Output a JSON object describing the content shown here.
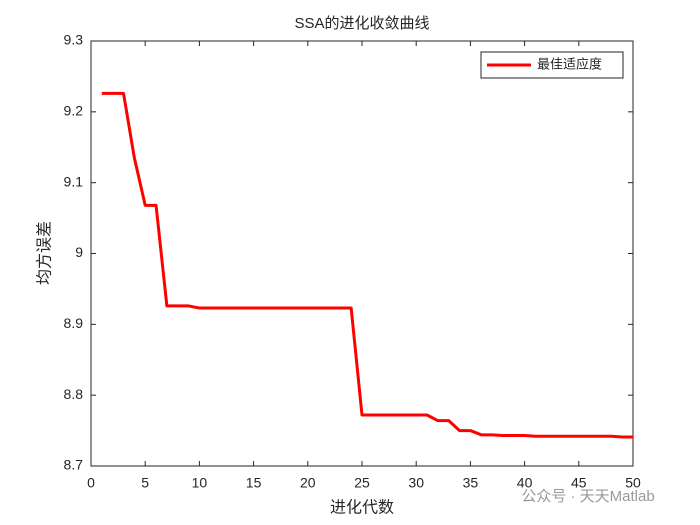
{
  "chart_data": {
    "type": "line",
    "title": "SSA的进化收敛曲线",
    "xlabel": "进化代数",
    "ylabel": "均方误差",
    "x": [
      1,
      2,
      3,
      4,
      5,
      6,
      7,
      8,
      9,
      10,
      11,
      12,
      13,
      14,
      15,
      16,
      17,
      18,
      19,
      20,
      21,
      22,
      23,
      24,
      25,
      26,
      27,
      28,
      29,
      30,
      31,
      32,
      33,
      34,
      35,
      36,
      37,
      38,
      39,
      40,
      41,
      42,
      43,
      44,
      45,
      46,
      47,
      48,
      49,
      50
    ],
    "series": [
      {
        "name": "最佳适应度",
        "color": "#ff0000",
        "values": [
          9.226,
          9.226,
          9.226,
          9.135,
          9.068,
          9.068,
          8.926,
          8.926,
          8.926,
          8.923,
          8.923,
          8.923,
          8.923,
          8.923,
          8.923,
          8.923,
          8.923,
          8.923,
          8.923,
          8.923,
          8.923,
          8.923,
          8.923,
          8.923,
          8.772,
          8.772,
          8.772,
          8.772,
          8.772,
          8.772,
          8.772,
          8.764,
          8.764,
          8.75,
          8.75,
          8.744,
          8.744,
          8.743,
          8.743,
          8.743,
          8.742,
          8.742,
          8.742,
          8.742,
          8.742,
          8.742,
          8.742,
          8.742,
          8.741,
          8.741
        ]
      }
    ],
    "xlim": [
      0,
      50
    ],
    "xticks": [
      0,
      5,
      10,
      15,
      20,
      25,
      30,
      35,
      40,
      45,
      50
    ],
    "ylim": [
      8.7,
      9.3
    ],
    "yticks": [
      8.7,
      8.8,
      8.9,
      9,
      9.1,
      9.2,
      9.3
    ],
    "legend": "northeast",
    "grid": false,
    "watermark": "公众号 · 天天Matlab"
  }
}
